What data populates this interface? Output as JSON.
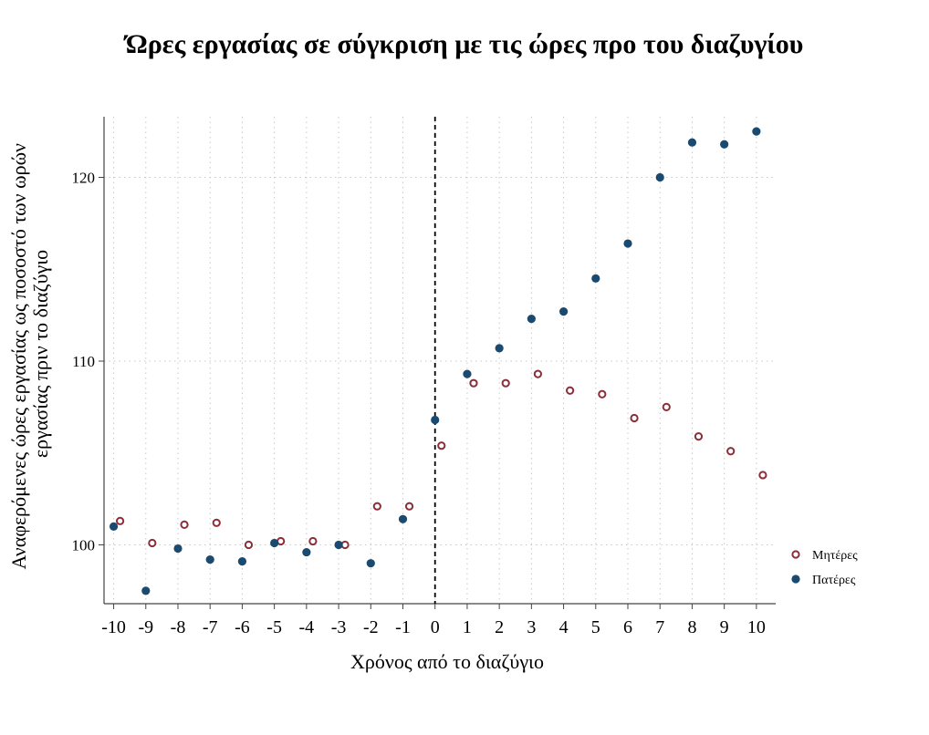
{
  "chart_data": {
    "type": "scatter",
    "title": "Ώρες εργασίας σε σύγκριση με τις ώρες προ του διαζυγίου",
    "xlabel": "Χρόνος από το διαζύγιο",
    "ylabel_lines": [
      "Αναφερόμενες ώρες εργασίας ως ποσοστό των ωρών",
      "εργασίας πριν το διαζύγιο"
    ],
    "x": [
      -10,
      -9,
      -8,
      -7,
      -6,
      -5,
      -4,
      -3,
      -2,
      -1,
      0,
      1,
      2,
      3,
      4,
      5,
      6,
      7,
      8,
      9,
      10
    ],
    "xlim": [
      -10.3,
      10.6
    ],
    "ylim": [
      96.8,
      123.3
    ],
    "xticks": [
      "-10",
      "-9",
      "-8",
      "-7",
      "-6",
      "-5",
      "-4",
      "-3",
      "-2",
      "-1",
      "0",
      "1",
      "2",
      "3",
      "4",
      "5",
      "6",
      "7",
      "8",
      "9",
      "10"
    ],
    "yticks": [
      100,
      110,
      120
    ],
    "ytick_labels": [
      "100",
      "110",
      "120"
    ],
    "vline_x": 0,
    "grid": true,
    "legend_position": "bottom-right",
    "series": [
      {
        "name": "Μητέρες",
        "marker": "hollow-circle",
        "color": "#8b2e3a",
        "x_offset": 0.2,
        "values": [
          101.3,
          100.1,
          101.1,
          101.2,
          100.0,
          100.2,
          100.2,
          100.0,
          102.1,
          102.1,
          105.4,
          108.8,
          108.8,
          109.3,
          108.4,
          108.2,
          106.9,
          107.5,
          105.9,
          105.1,
          103.8
        ]
      },
      {
        "name": "Πατέρες",
        "marker": "filled-circle",
        "color": "#1a4a70",
        "x_offset": 0,
        "values": [
          101.0,
          97.5,
          99.8,
          99.2,
          99.1,
          100.1,
          99.6,
          100.0,
          99.0,
          101.4,
          106.8,
          109.3,
          110.7,
          112.3,
          112.7,
          114.5,
          116.4,
          120.0,
          121.9,
          121.8,
          122.5
        ]
      }
    ]
  }
}
